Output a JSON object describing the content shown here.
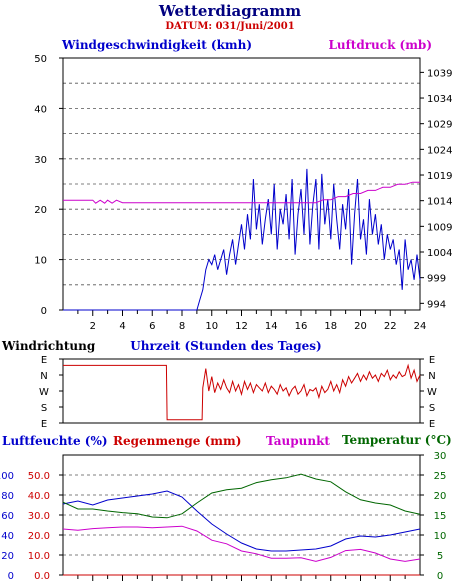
{
  "header": {
    "title": "Wetterdiagramm",
    "date": "DATUM: 031/Juni/2001"
  },
  "colors": {
    "navy": "#000080",
    "blue": "#0000cc",
    "magenta": "#cc00cc",
    "red": "#cc0000",
    "green": "#006600",
    "black": "#000000"
  },
  "chart_data": [
    {
      "type": "line",
      "x_label": "Uhrzeit (Stunden des Tages)",
      "x_range": [
        0,
        24
      ],
      "x_ticks": [
        "2",
        "4",
        "6",
        "8",
        "10",
        "12",
        "14",
        "16",
        "18",
        "20",
        "22",
        "24"
      ],
      "left_axis": {
        "label": "Windgeschwindigkeit (kmh)",
        "range": [
          0,
          50
        ],
        "ticks": [
          "0",
          "10",
          "20",
          "30",
          "40",
          "50"
        ]
      },
      "right_axis": {
        "label": "Luftdruck (mb)",
        "range": [
          992.7,
          1041.8
        ],
        "ticks": [
          "994",
          "999",
          "1004",
          "1009",
          "1014",
          "1019",
          "1024",
          "1029",
          "1034",
          "1039"
        ]
      },
      "grid": true,
      "series": [
        {
          "name": "Windgeschwindigkeit (kmh)",
          "axis": "left",
          "color": "#0000cc",
          "x": [
            0,
            9.0,
            9.2,
            9.4,
            9.6,
            9.8,
            10.0,
            10.2,
            10.4,
            10.6,
            10.8,
            11.0,
            11.2,
            11.4,
            11.6,
            11.8,
            12.0,
            12.2,
            12.4,
            12.6,
            12.8,
            13.0,
            13.2,
            13.4,
            13.6,
            13.8,
            14.0,
            14.2,
            14.4,
            14.6,
            14.8,
            15.0,
            15.2,
            15.4,
            15.6,
            15.8,
            16.0,
            16.2,
            16.4,
            16.6,
            16.8,
            17.0,
            17.2,
            17.4,
            17.6,
            17.8,
            18.0,
            18.2,
            18.4,
            18.6,
            18.8,
            19.0,
            19.2,
            19.4,
            19.6,
            19.8,
            20.0,
            20.2,
            20.4,
            20.6,
            20.8,
            21.0,
            21.2,
            21.4,
            21.6,
            21.8,
            22.0,
            22.2,
            22.4,
            22.6,
            22.8,
            23.0,
            23.2,
            23.4,
            23.6,
            23.8,
            24.0
          ],
          "values": [
            0,
            0,
            2,
            4,
            8,
            10,
            9,
            11,
            8,
            10,
            12,
            7,
            11,
            14,
            9,
            13,
            17,
            12,
            19,
            14,
            26,
            16,
            21,
            13,
            18,
            22,
            15,
            25,
            12,
            20,
            17,
            23,
            14,
            26,
            11,
            19,
            24,
            15,
            28,
            13,
            21,
            26,
            12,
            27,
            17,
            22,
            14,
            25,
            18,
            12,
            21,
            16,
            24,
            9,
            19,
            26,
            14,
            18,
            11,
            22,
            15,
            19,
            13,
            17,
            10,
            15,
            12,
            14,
            9,
            12,
            4,
            14,
            8,
            10,
            6,
            11,
            6
          ]
        },
        {
          "name": "Luftdruck (mb)",
          "axis": "right",
          "color": "#cc00cc",
          "x": [
            0,
            2.0,
            2.2,
            2.5,
            2.8,
            3.0,
            3.3,
            3.6,
            4.0,
            5,
            6,
            7,
            8,
            9,
            10,
            11,
            12,
            13,
            14,
            15,
            16,
            17,
            17.5,
            18,
            18.5,
            19,
            19.5,
            20,
            20.5,
            21,
            21.5,
            22,
            22.5,
            23,
            23.5,
            24
          ],
          "values": [
            1014.1,
            1014.1,
            1013.5,
            1014.1,
            1013.5,
            1014.1,
            1013.5,
            1014.1,
            1013.6,
            1013.6,
            1013.6,
            1013.6,
            1013.6,
            1013.6,
            1013.6,
            1013.6,
            1013.6,
            1013.6,
            1013.6,
            1013.6,
            1013.6,
            1013.6,
            1014.2,
            1014.2,
            1014.8,
            1014.8,
            1015.4,
            1015.4,
            1016.0,
            1016.0,
            1016.6,
            1016.6,
            1017.2,
            1017.2,
            1017.6,
            1017.6
          ]
        }
      ]
    },
    {
      "type": "line",
      "title": "Windrichtung",
      "x_range": [
        0,
        24
      ],
      "y_ticks": [
        "E",
        "N",
        "W",
        "S",
        "E"
      ],
      "y_range": [
        0,
        4
      ],
      "series": [
        {
          "name": "Windrichtung",
          "color": "#cc0000",
          "x": [
            0,
            6.95,
            7.0,
            9.35,
            9.4,
            9.6,
            9.8,
            10.0,
            10.2,
            10.4,
            10.6,
            10.8,
            11.0,
            11.2,
            11.4,
            11.6,
            11.8,
            12.0,
            12.2,
            12.4,
            12.6,
            12.8,
            13.0,
            13.2,
            13.4,
            13.6,
            13.8,
            14.0,
            14.2,
            14.4,
            14.6,
            14.8,
            15.0,
            15.2,
            15.4,
            15.6,
            15.8,
            16.0,
            16.2,
            16.4,
            16.6,
            16.8,
            17.0,
            17.2,
            17.4,
            17.6,
            17.8,
            18.0,
            18.2,
            18.4,
            18.6,
            18.8,
            19.0,
            19.2,
            19.4,
            19.6,
            19.8,
            20.0,
            20.2,
            20.4,
            20.6,
            20.8,
            21.0,
            21.2,
            21.4,
            21.6,
            21.8,
            22.0,
            22.2,
            22.4,
            22.6,
            22.8,
            23.0,
            23.2,
            23.4,
            23.6,
            23.8,
            24.0
          ],
          "values": [
            3.6,
            3.6,
            0.2,
            0.2,
            2.2,
            3.4,
            2.0,
            2.9,
            1.9,
            2.5,
            2.1,
            2.7,
            2.2,
            1.9,
            2.6,
            2.0,
            2.4,
            1.8,
            2.6,
            2.1,
            2.5,
            1.9,
            2.4,
            2.2,
            2.0,
            2.5,
            1.9,
            2.3,
            2.1,
            1.8,
            2.4,
            2.0,
            2.2,
            1.7,
            2.1,
            2.3,
            1.8,
            2.0,
            2.4,
            1.7,
            2.1,
            2.0,
            2.2,
            1.6,
            2.3,
            1.9,
            2.1,
            2.6,
            2.0,
            2.4,
            1.9,
            2.7,
            2.3,
            2.9,
            2.5,
            2.8,
            3.1,
            2.6,
            3.0,
            2.7,
            3.2,
            2.8,
            3.0,
            2.6,
            3.1,
            2.9,
            3.3,
            2.7,
            3.0,
            2.8,
            3.2,
            2.9,
            3.0,
            3.6,
            2.8,
            3.3,
            2.6,
            3.0
          ]
        }
      ]
    },
    {
      "type": "line",
      "x_range": [
        0,
        24
      ],
      "grid": true,
      "axis_left_outer": {
        "label": "Luftfeuchte (%)",
        "range": [
          0,
          120
        ],
        "ticks": [
          "0",
          "20",
          "40",
          "60",
          "80",
          "100"
        ]
      },
      "axis_left_inner": {
        "label": "Regenmenge (mm)",
        "range": [
          0,
          60
        ],
        "ticks": [
          "0.0",
          "10.0",
          "20.0",
          "30.0",
          "40.0",
          "50.0"
        ]
      },
      "axis_right": {
        "label": "Temperatur (°C)",
        "range": [
          0,
          30
        ],
        "ticks": [
          "0",
          "5",
          "10",
          "15",
          "20",
          "25",
          "30"
        ]
      },
      "legend_extra": "Taupunkt",
      "series": [
        {
          "name": "Luftfeuchte (%)",
          "axis": "left_outer",
          "color": "#0000cc",
          "x": [
            0,
            1,
            2,
            3,
            4,
            5,
            6,
            7,
            8,
            9,
            10,
            11,
            12,
            13,
            14,
            15,
            16,
            17,
            18,
            19,
            20,
            21,
            22,
            23,
            24
          ],
          "values": [
            71,
            74,
            70,
            75,
            77,
            79,
            81,
            84,
            78,
            64,
            51,
            41,
            32,
            26,
            24,
            24,
            25,
            26,
            29,
            36,
            39,
            38,
            40,
            43,
            46
          ]
        },
        {
          "name": "Taupunkt",
          "axis": "right",
          "color": "#cc00cc",
          "x": [
            0,
            1,
            2,
            3,
            4,
            5,
            6,
            7,
            8,
            9,
            10,
            11,
            12,
            13,
            14,
            15,
            16,
            17,
            18,
            19,
            20,
            21,
            22,
            23,
            24
          ],
          "values": [
            11.5,
            11.2,
            11.6,
            11.8,
            12.0,
            12.0,
            11.8,
            12.0,
            12.2,
            11.0,
            8.7,
            7.8,
            6.0,
            5.3,
            4.2,
            4.2,
            4.3,
            3.4,
            4.4,
            6.1,
            6.4,
            5.5,
            4.0,
            3.4,
            4.0
          ]
        },
        {
          "name": "Temperatur (°C)",
          "axis": "right",
          "color": "#006600",
          "x": [
            0,
            1,
            2,
            3,
            4,
            5,
            6,
            7,
            8,
            9,
            10,
            11,
            12,
            13,
            14,
            15,
            16,
            17,
            18,
            19,
            20,
            21,
            22,
            23,
            24
          ],
          "values": [
            18.2,
            16.5,
            16.5,
            16.0,
            15.6,
            15.3,
            14.5,
            14.3,
            15.3,
            18.0,
            20.5,
            21.3,
            21.7,
            23.1,
            23.8,
            24.3,
            25.2,
            24.0,
            23.3,
            20.8,
            18.8,
            18.0,
            17.5,
            16.0,
            15.2
          ]
        },
        {
          "name": "Regenmenge (mm)",
          "axis": "left_inner",
          "color": "#cc0000",
          "x": [
            0,
            24
          ],
          "values": [
            0,
            0
          ]
        }
      ]
    }
  ]
}
